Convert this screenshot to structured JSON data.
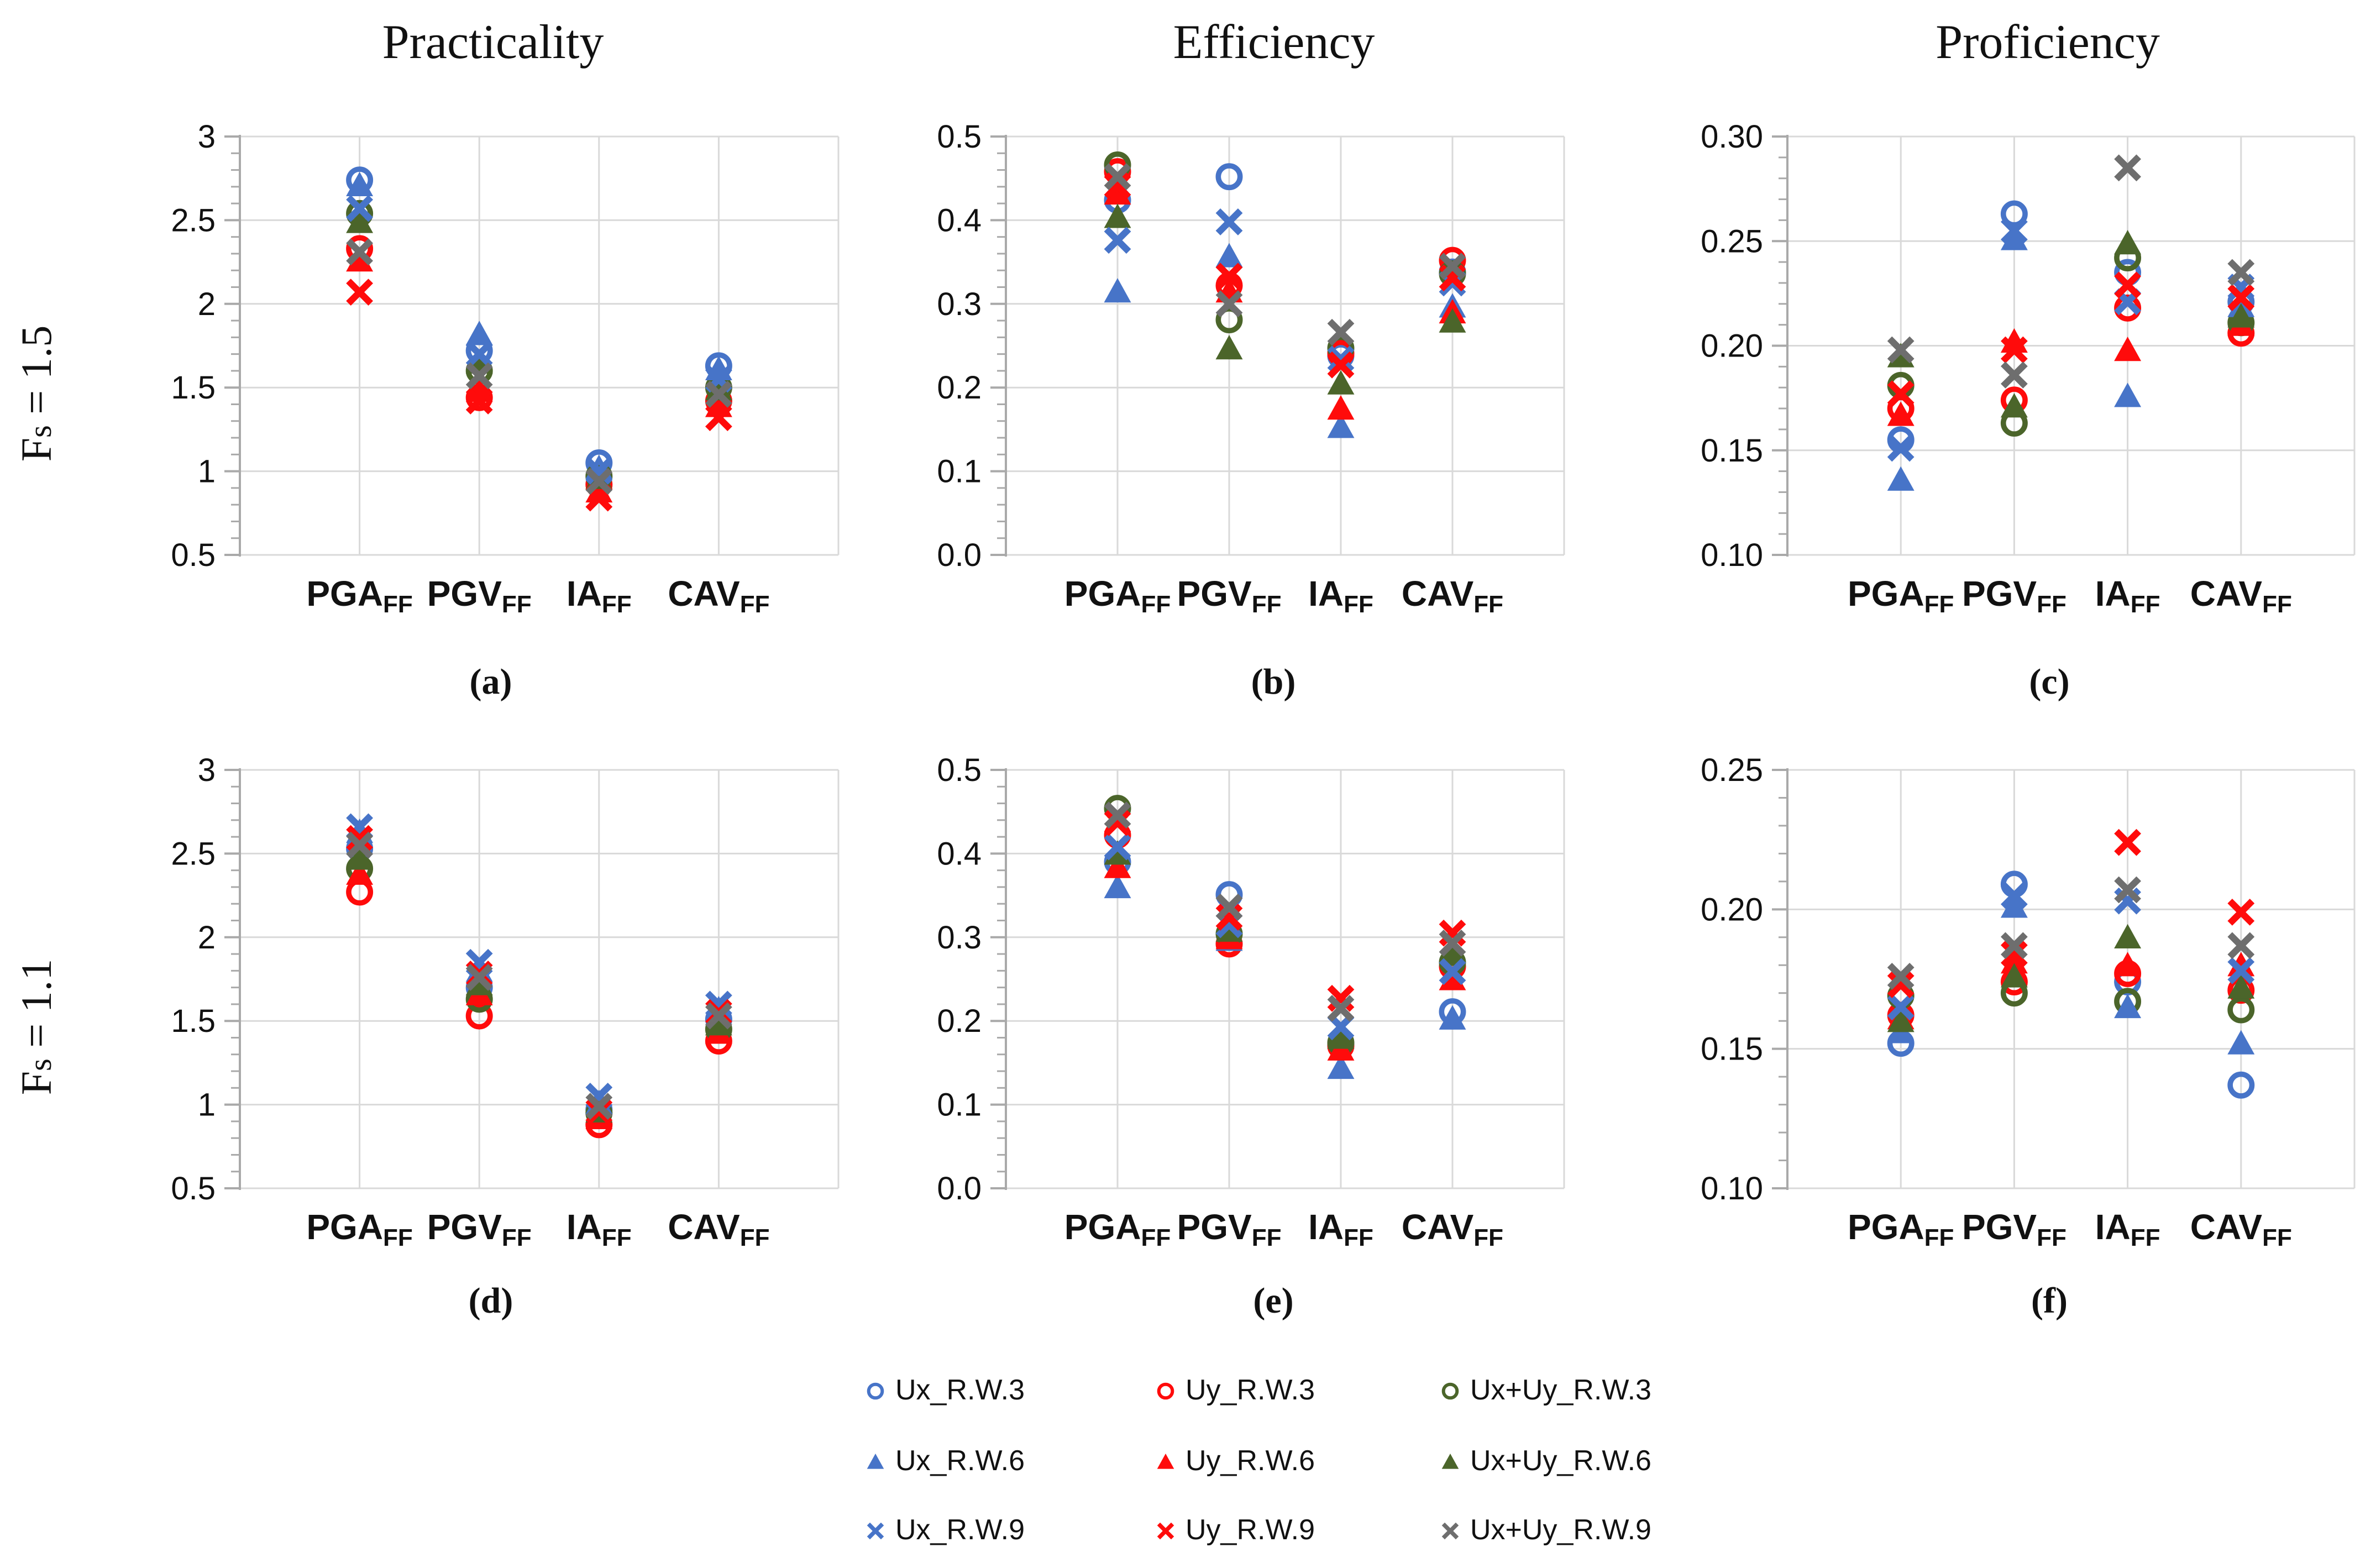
{
  "figure": {
    "column_titles": [
      "Practicality",
      "Efficiency",
      "Proficiency"
    ],
    "row_labels": [
      "Fs = 1.5",
      "Fs = 1.1"
    ],
    "sublabels": [
      "(a)",
      "(b)",
      "(c)",
      "(d)",
      "(e)",
      "(f)"
    ],
    "background_color": "#ffffff",
    "gridline_color": "#d9d9d9",
    "axis_color": "#a9a9a9",
    "text_color": "#111111"
  },
  "series_styles": [
    {
      "id": "ux_rw3",
      "label": "Ux_R.W.3",
      "marker": "circle",
      "color": "#4774C8"
    },
    {
      "id": "uy_rw3",
      "label": "Uy_R.W.3",
      "marker": "circle",
      "color": "#FF0B0B"
    },
    {
      "id": "uxuy_rw3",
      "label": "Ux+Uy_R.W.3",
      "marker": "circle",
      "color": "#4B652A"
    },
    {
      "id": "ux_rw6",
      "label": "Ux_R.W.6",
      "marker": "triangle",
      "color": "#4774C8"
    },
    {
      "id": "uy_rw6",
      "label": "Uy_R.W.6",
      "marker": "triangle",
      "color": "#FF0B0B"
    },
    {
      "id": "uxuy_rw6",
      "label": "Ux+Uy_R.W.6",
      "marker": "triangle",
      "color": "#4B652A"
    },
    {
      "id": "ux_rw9",
      "label": "Ux_R.W.9",
      "marker": "x",
      "color": "#4774C8"
    },
    {
      "id": "uy_rw9",
      "label": "Uy_R.W.9",
      "marker": "x",
      "color": "#FF0B0B"
    },
    {
      "id": "uxuy_rw9",
      "label": "Ux+Uy_R.W.9",
      "marker": "x",
      "color": "#6E6E6E"
    }
  ],
  "chart_data": [
    {
      "id": "a",
      "type": "scatter",
      "sublabel": "(a)",
      "column_title": "Practicality",
      "row_label": "Fs = 1.5",
      "categories": [
        "PGA_FF",
        "PGV_FF",
        "IA_FF",
        "CAV_FF"
      ],
      "ylim": [
        0.5,
        3.0
      ],
      "ytick_step": 0.5,
      "grid": true,
      "yticks": [
        "3",
        "2.5",
        "2",
        "1.5",
        "1",
        "0.5"
      ],
      "values": {
        "ux_rw3": [
          2.74,
          1.72,
          1.05,
          1.63
        ],
        "uy_rw3": [
          2.33,
          1.44,
          0.92,
          1.42
        ],
        "uxuy_rw3": [
          2.54,
          1.6,
          0.97,
          1.5
        ],
        "ux_rw6": [
          2.71,
          1.82,
          1.02,
          1.61
        ],
        "uy_rw6": [
          2.26,
          1.48,
          0.88,
          1.39
        ],
        "uxuy_rw6": [
          2.49,
          1.65,
          0.96,
          1.49
        ],
        "ux_rw9": [
          2.57,
          1.7,
          1.0,
          1.55
        ],
        "uy_rw9": [
          2.07,
          1.42,
          0.84,
          1.32
        ],
        "uxuy_rw9": [
          2.31,
          1.57,
          0.94,
          1.46
        ]
      }
    },
    {
      "id": "b",
      "type": "scatter",
      "sublabel": "(b)",
      "column_title": "Efficiency",
      "row_label": "Fs = 1.5",
      "categories": [
        "PGA_FF",
        "PGV_FF",
        "IA_FF",
        "CAV_FF"
      ],
      "ylim": [
        0.0,
        0.5
      ],
      "ytick_step": 0.1,
      "grid": true,
      "yticks": [
        "0.5",
        "0.4",
        "0.3",
        "0.2",
        "0.1",
        "0.0"
      ],
      "values": {
        "ux_rw3": [
          0.424,
          0.452,
          0.238,
          0.338
        ],
        "uy_rw3": [
          0.458,
          0.322,
          0.241,
          0.352
        ],
        "uxuy_rw3": [
          0.466,
          0.281,
          0.247,
          0.336
        ],
        "ux_rw6": [
          0.315,
          0.357,
          0.153,
          0.297
        ],
        "uy_rw6": [
          0.432,
          0.315,
          0.175,
          0.29
        ],
        "uxuy_rw6": [
          0.404,
          0.247,
          0.205,
          0.279
        ],
        "ux_rw9": [
          0.376,
          0.398,
          0.234,
          0.325
        ],
        "uy_rw9": [
          0.441,
          0.333,
          0.227,
          0.331
        ],
        "uxuy_rw9": [
          0.452,
          0.3,
          0.266,
          0.345
        ]
      }
    },
    {
      "id": "c",
      "type": "scatter",
      "sublabel": "(c)",
      "column_title": "Proficiency",
      "row_label": "Fs = 1.5",
      "categories": [
        "PGA_FF",
        "PGV_FF",
        "IA_FF",
        "CAV_FF"
      ],
      "ylim": [
        0.1,
        0.3
      ],
      "ytick_step": 0.05,
      "grid": true,
      "yticks": [
        "0.30",
        "0.25",
        "0.20",
        "0.15",
        "0.10"
      ],
      "values": {
        "ux_rw3": [
          0.155,
          0.263,
          0.235,
          0.221
        ],
        "uy_rw3": [
          0.17,
          0.174,
          0.218,
          0.206
        ],
        "uxuy_rw3": [
          0.181,
          0.163,
          0.242,
          0.211
        ],
        "ux_rw6": [
          0.136,
          0.251,
          0.176,
          0.219
        ],
        "uy_rw6": [
          0.167,
          0.202,
          0.198,
          0.21
        ],
        "uxuy_rw6": [
          0.195,
          0.171,
          0.249,
          0.214
        ],
        "ux_rw9": [
          0.151,
          0.255,
          0.221,
          0.228
        ],
        "uy_rw9": [
          0.177,
          0.198,
          0.229,
          0.223
        ],
        "uxuy_rw9": [
          0.198,
          0.186,
          0.285,
          0.235
        ]
      }
    },
    {
      "id": "d",
      "type": "scatter",
      "sublabel": "(d)",
      "column_title": "Practicality",
      "row_label": "Fs = 1.1",
      "categories": [
        "PGA_FF",
        "PGV_FF",
        "IA_FF",
        "CAV_FF"
      ],
      "ylim": [
        0.5,
        3.0
      ],
      "ytick_step": 0.5,
      "grid": true,
      "yticks": [
        "3",
        "2.5",
        "2",
        "1.5",
        "1",
        "0.5"
      ],
      "values": {
        "ux_rw3": [
          2.53,
          1.7,
          0.97,
          1.51
        ],
        "uy_rw3": [
          2.27,
          1.53,
          0.88,
          1.38
        ],
        "uxuy_rw3": [
          2.41,
          1.63,
          0.95,
          1.45
        ],
        "ux_rw6": [
          2.63,
          1.8,
          1.01,
          1.57
        ],
        "uy_rw6": [
          2.38,
          1.66,
          0.92,
          1.43
        ],
        "uxuy_rw6": [
          2.47,
          1.72,
          0.96,
          1.48
        ],
        "ux_rw9": [
          2.66,
          1.85,
          1.05,
          1.6
        ],
        "uy_rw9": [
          2.59,
          1.78,
          0.96,
          1.55
        ],
        "uxuy_rw9": [
          2.55,
          1.76,
          0.99,
          1.53
        ]
      }
    },
    {
      "id": "e",
      "type": "scatter",
      "sublabel": "(e)",
      "column_title": "Efficiency",
      "row_label": "Fs = 1.1",
      "categories": [
        "PGA_FF",
        "PGV_FF",
        "IA_FF",
        "CAV_FF"
      ],
      "ylim": [
        0.0,
        0.5
      ],
      "ytick_step": 0.1,
      "grid": true,
      "yticks": [
        "0.5",
        "0.4",
        "0.3",
        "0.2",
        "0.1",
        "0.0"
      ],
      "values": {
        "ux_rw3": [
          0.39,
          0.351,
          0.172,
          0.211
        ],
        "uy_rw3": [
          0.422,
          0.292,
          0.17,
          0.265
        ],
        "uxuy_rw3": [
          0.454,
          0.304,
          0.174,
          0.27
        ],
        "ux_rw6": [
          0.36,
          0.297,
          0.144,
          0.203
        ],
        "uy_rw6": [
          0.384,
          0.299,
          0.166,
          0.25
        ],
        "uxuy_rw6": [
          0.4,
          0.308,
          0.18,
          0.279
        ],
        "ux_rw9": [
          0.408,
          0.315,
          0.193,
          0.259
        ],
        "uy_rw9": [
          0.437,
          0.324,
          0.227,
          0.305
        ],
        "uxuy_rw9": [
          0.446,
          0.336,
          0.215,
          0.293
        ]
      }
    },
    {
      "id": "f",
      "type": "scatter",
      "sublabel": "(f)",
      "column_title": "Proficiency",
      "row_label": "Fs = 1.1",
      "categories": [
        "PGA_FF",
        "PGV_FF",
        "IA_FF",
        "CAV_FF"
      ],
      "ylim": [
        0.1,
        0.25
      ],
      "ytick_step": 0.05,
      "grid": true,
      "yticks": [
        "0.25",
        "0.20",
        "0.15",
        "0.10"
      ],
      "values": {
        "ux_rw3": [
          0.152,
          0.209,
          0.174,
          0.137
        ],
        "uy_rw3": [
          0.162,
          0.174,
          0.177,
          0.171
        ],
        "uxuy_rw3": [
          0.169,
          0.17,
          0.167,
          0.164
        ],
        "ux_rw6": [
          0.156,
          0.201,
          0.165,
          0.152
        ],
        "uy_rw6": [
          0.161,
          0.181,
          0.18,
          0.18
        ],
        "uxuy_rw6": [
          0.16,
          0.176,
          0.19,
          0.172
        ],
        "ux_rw9": [
          0.165,
          0.205,
          0.203,
          0.178
        ],
        "uy_rw9": [
          0.173,
          0.184,
          0.224,
          0.199
        ],
        "uxuy_rw9": [
          0.176,
          0.187,
          0.207,
          0.187
        ]
      }
    }
  ]
}
